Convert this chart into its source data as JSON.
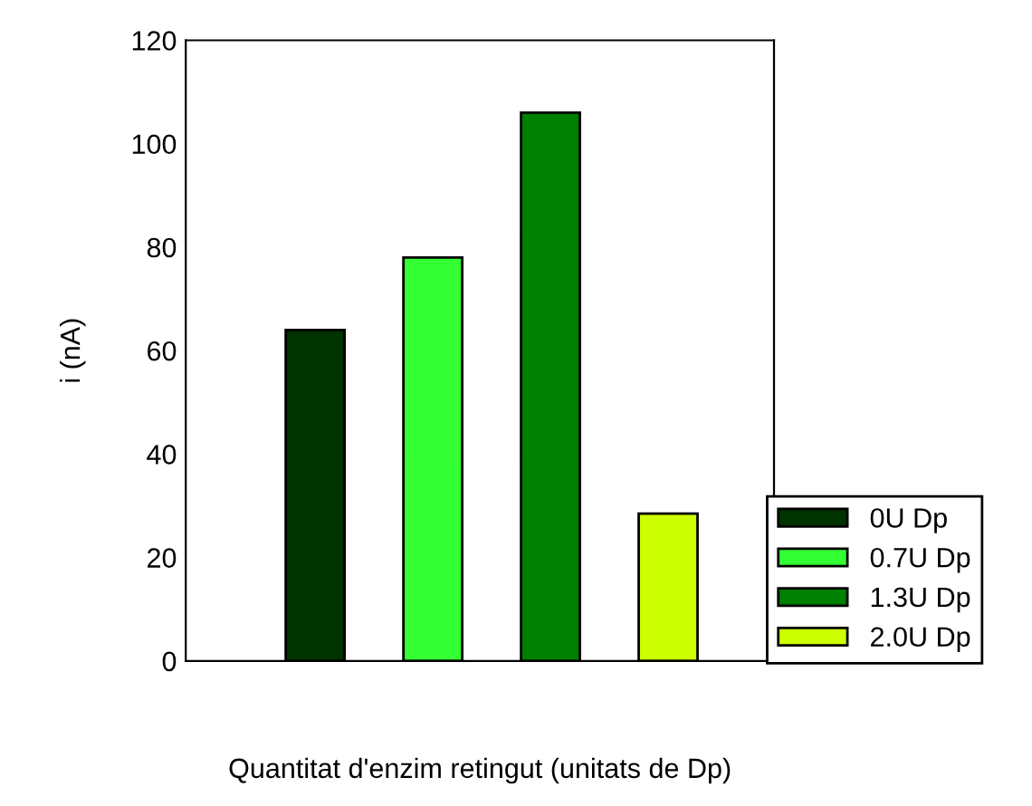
{
  "chart_data": {
    "type": "bar",
    "xlabel": "Quantitat d'enzim retingut (unitats de Dp)",
    "ylabel": "i (nA)",
    "categories": [
      null,
      null,
      null,
      null
    ],
    "series": [
      {
        "name": "0U Dp",
        "color": "#003300",
        "values": [
          64,
          null,
          null,
          null
        ]
      },
      {
        "name": "0.7U Dp",
        "color": "#33ff33",
        "values": [
          null,
          78,
          null,
          null
        ]
      },
      {
        "name": "1.3U Dp",
        "color": "#008000",
        "values": [
          null,
          null,
          106,
          null
        ]
      },
      {
        "name": "2.0U Dp",
        "color": "#ccff00",
        "values": [
          null,
          null,
          null,
          28.5
        ]
      }
    ],
    "ylim": [
      0,
      120
    ],
    "yticks": [
      0,
      20,
      40,
      60,
      80,
      100,
      120
    ],
    "grid": false,
    "legend": "right"
  }
}
